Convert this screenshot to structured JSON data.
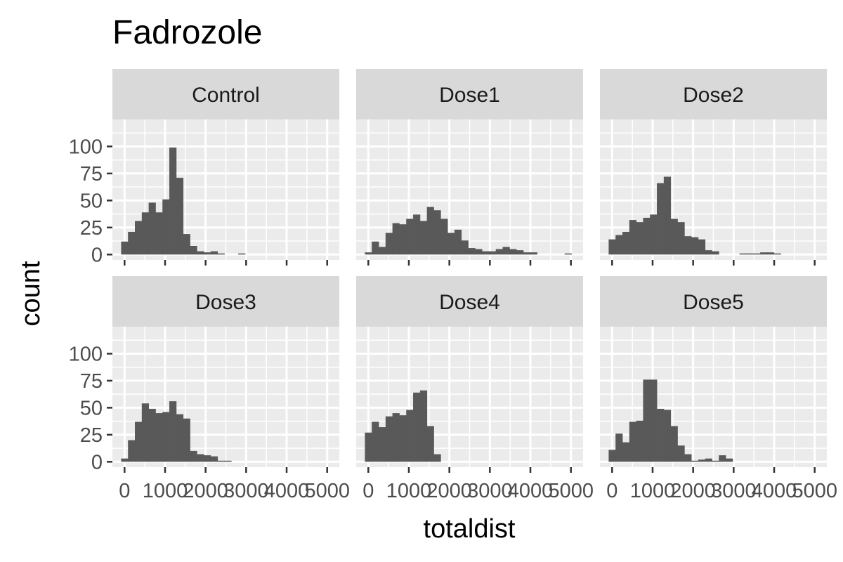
{
  "chart_data": {
    "type": "bar",
    "subtype": "faceted-histogram",
    "title": "Fadrozole",
    "xlabel": "totaldist",
    "ylabel": "count",
    "x_ticks": [
      0,
      1000,
      2000,
      3000,
      4000,
      5000
    ],
    "x_tick_labels": [
      "0",
      "1000",
      "2000",
      "3000",
      "4000",
      "5000"
    ],
    "y_ticks": [
      0,
      25,
      50,
      75,
      100
    ],
    "y_tick_labels": [
      "0",
      "25",
      "50",
      "75",
      "100"
    ],
    "xlim": [
      -300,
      5300
    ],
    "ylim": [
      -5,
      125
    ],
    "bin_width": 170,
    "grid": true,
    "facet_layout": "2x3",
    "panels": [
      {
        "label": "Control",
        "bars": [
          {
            "x": 0,
            "count": 12
          },
          {
            "x": 170,
            "count": 21
          },
          {
            "x": 340,
            "count": 31
          },
          {
            "x": 510,
            "count": 39
          },
          {
            "x": 680,
            "count": 48
          },
          {
            "x": 850,
            "count": 39
          },
          {
            "x": 1020,
            "count": 51
          },
          {
            "x": 1190,
            "count": 99
          },
          {
            "x": 1360,
            "count": 71
          },
          {
            "x": 1530,
            "count": 19
          },
          {
            "x": 1700,
            "count": 8
          },
          {
            "x": 1870,
            "count": 3
          },
          {
            "x": 2040,
            "count": 2
          },
          {
            "x": 2210,
            "count": 3
          },
          {
            "x": 2380,
            "count": 1
          },
          {
            "x": 2890,
            "count": 1
          }
        ]
      },
      {
        "label": "Dose1",
        "bars": [
          {
            "x": 0,
            "count": 2
          },
          {
            "x": 170,
            "count": 12
          },
          {
            "x": 340,
            "count": 7
          },
          {
            "x": 510,
            "count": 20
          },
          {
            "x": 680,
            "count": 29
          },
          {
            "x": 850,
            "count": 28
          },
          {
            "x": 1020,
            "count": 33
          },
          {
            "x": 1190,
            "count": 37
          },
          {
            "x": 1360,
            "count": 31
          },
          {
            "x": 1530,
            "count": 44
          },
          {
            "x": 1700,
            "count": 41
          },
          {
            "x": 1870,
            "count": 33
          },
          {
            "x": 2040,
            "count": 20
          },
          {
            "x": 2210,
            "count": 23
          },
          {
            "x": 2380,
            "count": 13
          },
          {
            "x": 2550,
            "count": 6
          },
          {
            "x": 2720,
            "count": 5
          },
          {
            "x": 2890,
            "count": 3
          },
          {
            "x": 3060,
            "count": 3
          },
          {
            "x": 3230,
            "count": 5
          },
          {
            "x": 3400,
            "count": 7
          },
          {
            "x": 3570,
            "count": 5
          },
          {
            "x": 3740,
            "count": 4
          },
          {
            "x": 3910,
            "count": 2
          },
          {
            "x": 4080,
            "count": 2
          },
          {
            "x": 4930,
            "count": 1
          }
        ]
      },
      {
        "label": "Dose2",
        "bars": [
          {
            "x": 0,
            "count": 14
          },
          {
            "x": 170,
            "count": 18
          },
          {
            "x": 340,
            "count": 21
          },
          {
            "x": 510,
            "count": 32
          },
          {
            "x": 680,
            "count": 30
          },
          {
            "x": 850,
            "count": 34
          },
          {
            "x": 1020,
            "count": 37
          },
          {
            "x": 1190,
            "count": 66
          },
          {
            "x": 1360,
            "count": 72
          },
          {
            "x": 1530,
            "count": 33
          },
          {
            "x": 1700,
            "count": 30
          },
          {
            "x": 1870,
            "count": 17
          },
          {
            "x": 2040,
            "count": 16
          },
          {
            "x": 2210,
            "count": 14
          },
          {
            "x": 2380,
            "count": 4
          },
          {
            "x": 2550,
            "count": 3
          },
          {
            "x": 3230,
            "count": 1
          },
          {
            "x": 3400,
            "count": 1
          },
          {
            "x": 3570,
            "count": 1
          },
          {
            "x": 3740,
            "count": 2
          },
          {
            "x": 3910,
            "count": 2
          },
          {
            "x": 4080,
            "count": 1
          }
        ]
      },
      {
        "label": "Dose3",
        "bars": [
          {
            "x": 0,
            "count": 3
          },
          {
            "x": 170,
            "count": 20
          },
          {
            "x": 340,
            "count": 37
          },
          {
            "x": 510,
            "count": 54
          },
          {
            "x": 680,
            "count": 49
          },
          {
            "x": 850,
            "count": 45
          },
          {
            "x": 1020,
            "count": 46
          },
          {
            "x": 1190,
            "count": 56
          },
          {
            "x": 1360,
            "count": 44
          },
          {
            "x": 1530,
            "count": 40
          },
          {
            "x": 1700,
            "count": 10
          },
          {
            "x": 1870,
            "count": 7
          },
          {
            "x": 2040,
            "count": 6
          },
          {
            "x": 2210,
            "count": 5
          },
          {
            "x": 2380,
            "count": 1
          },
          {
            "x": 2550,
            "count": 1
          }
        ]
      },
      {
        "label": "Dose4",
        "bars": [
          {
            "x": 0,
            "count": 27
          },
          {
            "x": 170,
            "count": 37
          },
          {
            "x": 340,
            "count": 32
          },
          {
            "x": 510,
            "count": 42
          },
          {
            "x": 680,
            "count": 45
          },
          {
            "x": 850,
            "count": 43
          },
          {
            "x": 1020,
            "count": 48
          },
          {
            "x": 1190,
            "count": 64
          },
          {
            "x": 1360,
            "count": 66
          },
          {
            "x": 1530,
            "count": 33
          },
          {
            "x": 1700,
            "count": 7
          }
        ]
      },
      {
        "label": "Dose5",
        "bars": [
          {
            "x": 0,
            "count": 11
          },
          {
            "x": 170,
            "count": 26
          },
          {
            "x": 340,
            "count": 18
          },
          {
            "x": 510,
            "count": 37
          },
          {
            "x": 680,
            "count": 38
          },
          {
            "x": 850,
            "count": 76
          },
          {
            "x": 1020,
            "count": 76
          },
          {
            "x": 1190,
            "count": 49
          },
          {
            "x": 1360,
            "count": 48
          },
          {
            "x": 1530,
            "count": 33
          },
          {
            "x": 1700,
            "count": 15
          },
          {
            "x": 1870,
            "count": 7
          },
          {
            "x": 2040,
            "count": 1
          },
          {
            "x": 2210,
            "count": 2
          },
          {
            "x": 2380,
            "count": 3
          },
          {
            "x": 2550,
            "count": 1
          },
          {
            "x": 2720,
            "count": 6
          },
          {
            "x": 2890,
            "count": 3
          }
        ]
      }
    ],
    "colors": {
      "bar_fill": "#595959",
      "panel_background": "#ebebeb",
      "strip_background": "#d9d9d9",
      "grid": "#ffffff"
    }
  }
}
